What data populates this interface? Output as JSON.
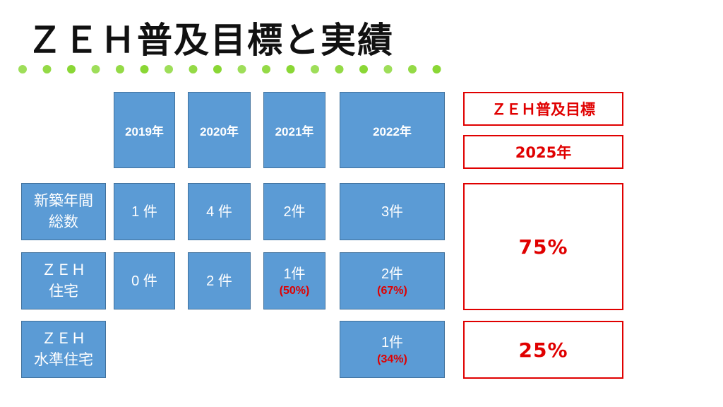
{
  "title": "ＺＥＨ普及目標と実績",
  "headers": [
    "2019年",
    "2020年",
    "2021年",
    "2022年"
  ],
  "rows": [
    {
      "label": "新築年間\n総数",
      "cells": [
        {
          "value": "1 件",
          "pct": ""
        },
        {
          "value": "4 件",
          "pct": ""
        },
        {
          "value": "2件",
          "pct": ""
        },
        {
          "value": "3件",
          "pct": ""
        }
      ]
    },
    {
      "label": "ＺＥＨ\n住宅",
      "cells": [
        {
          "value": "0 件",
          "pct": ""
        },
        {
          "value": "2 件",
          "pct": ""
        },
        {
          "value": "1件",
          "pct": "(50%)"
        },
        {
          "value": "2件",
          "pct": "(67%)"
        }
      ]
    },
    {
      "label": "ＺＥＨ\n水準住宅",
      "cells": [
        null,
        null,
        null,
        {
          "value": "1件",
          "pct": "(34%)"
        }
      ]
    }
  ],
  "target": {
    "heading": "ＺＥＨ普及目標",
    "year": "2025年",
    "zeh_goal": "75%",
    "zeh_level_goal": "25%"
  },
  "colors": {
    "cell_fill": "#5b9bd5",
    "target_red": "#e00000",
    "dot_green": "#7ed321"
  }
}
